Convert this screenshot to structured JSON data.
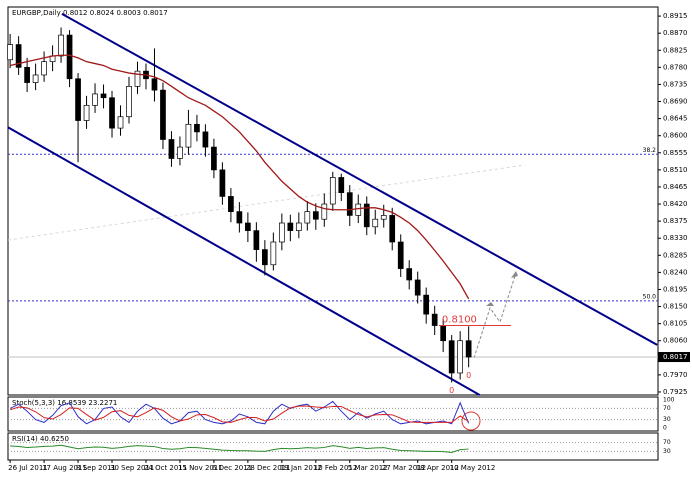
{
  "chart_data": [
    {
      "type": "candlestick",
      "title": "EURGBP,Daily  0.8012 0.8024 0.8003 0.8017",
      "categories": [
        "26 Jul 2011",
        null,
        null,
        null,
        "17 Aug 2011",
        null,
        null,
        null,
        "8 Sep 2011",
        null,
        null,
        null,
        "30 Sep 2011",
        null,
        null,
        null,
        "24 Oct 2011",
        null,
        null,
        null,
        "15 Nov 2011",
        null,
        null,
        null,
        "6 Dec 2011",
        null,
        null,
        null,
        "28 Dec 2011",
        null,
        null,
        null,
        "19 Jan 2012",
        null,
        null,
        null,
        "10 Feb 2012",
        null,
        null,
        null,
        "5 Mar 2012",
        null,
        null,
        null,
        "27 Mar 2012",
        null,
        null,
        null,
        "18 Apr 2012",
        null,
        null,
        null,
        "10 May 2012",
        null,
        null
      ],
      "open": [
        0.88,
        0.884,
        0.878,
        0.874,
        0.876,
        0.8795,
        0.881,
        0.8865,
        0.875,
        0.864,
        0.868,
        0.871,
        0.87,
        0.862,
        0.865,
        0.873,
        0.877,
        0.875,
        0.872,
        0.859,
        0.854,
        0.857,
        0.863,
        0.861,
        0.857,
        0.851,
        0.844,
        0.84,
        0.837,
        0.835,
        0.83,
        0.826,
        0.832,
        0.837,
        0.835,
        0.837,
        0.84,
        0.838,
        0.842,
        0.849,
        0.845,
        0.839,
        0.842,
        0.836,
        0.838,
        0.839,
        0.832,
        0.825,
        0.822,
        0.818,
        0.813,
        0.81,
        0.806,
        0.7975,
        0.806
      ],
      "high": [
        0.8868,
        0.8862,
        0.8805,
        0.879,
        0.8822,
        0.8838,
        0.8885,
        0.8878,
        0.8765,
        0.8705,
        0.8738,
        0.8735,
        0.8718,
        0.868,
        0.8755,
        0.8795,
        0.879,
        0.883,
        0.874,
        0.8612,
        0.8598,
        0.8668,
        0.8655,
        0.863,
        0.8592,
        0.853,
        0.8462,
        0.8425,
        0.8398,
        0.8372,
        0.8325,
        0.8345,
        0.8395,
        0.8392,
        0.8398,
        0.8428,
        0.8422,
        0.8448,
        0.8505,
        0.85,
        0.847,
        0.8445,
        0.844,
        0.8405,
        0.8418,
        0.841,
        0.834,
        0.8272,
        0.8242,
        0.82,
        0.8152,
        0.8118,
        0.8075,
        0.8085,
        0.8098
      ],
      "low": [
        0.8778,
        0.876,
        0.8715,
        0.872,
        0.8742,
        0.877,
        0.8792,
        0.8728,
        0.853,
        0.8618,
        0.866,
        0.8672,
        0.8595,
        0.86,
        0.8632,
        0.871,
        0.8722,
        0.869,
        0.8565,
        0.8518,
        0.8522,
        0.855,
        0.8585,
        0.8545,
        0.8488,
        0.8418,
        0.8372,
        0.8345,
        0.832,
        0.8268,
        0.8232,
        0.8245,
        0.8298,
        0.8322,
        0.833,
        0.835,
        0.8352,
        0.836,
        0.8402,
        0.8428,
        0.8362,
        0.837,
        0.8338,
        0.834,
        0.8358,
        0.8298,
        0.8228,
        0.8195,
        0.8158,
        0.8105,
        0.8075,
        0.803,
        0.795,
        0.7958,
        0.799
      ],
      "close": [
        0.884,
        0.878,
        0.874,
        0.876,
        0.8795,
        0.881,
        0.8865,
        0.875,
        0.864,
        0.868,
        0.871,
        0.87,
        0.862,
        0.865,
        0.873,
        0.877,
        0.875,
        0.872,
        0.859,
        0.854,
        0.857,
        0.863,
        0.861,
        0.857,
        0.851,
        0.844,
        0.84,
        0.837,
        0.835,
        0.83,
        0.826,
        0.832,
        0.837,
        0.835,
        0.837,
        0.84,
        0.838,
        0.842,
        0.849,
        0.845,
        0.839,
        0.842,
        0.836,
        0.838,
        0.839,
        0.832,
        0.825,
        0.822,
        0.818,
        0.813,
        0.81,
        0.806,
        0.7975,
        0.806,
        0.8017
      ],
      "moving_average": {
        "color": "#a01818",
        "values": [
          0.8785,
          0.879,
          0.8795,
          0.88,
          0.8805,
          0.881,
          0.8812,
          0.8812,
          0.8805,
          0.8795,
          0.879,
          0.8785,
          0.8775,
          0.877,
          0.8765,
          0.8762,
          0.876,
          0.8755,
          0.8745,
          0.873,
          0.8715,
          0.87,
          0.869,
          0.868,
          0.8665,
          0.865,
          0.863,
          0.861,
          0.8585,
          0.856,
          0.853,
          0.8505,
          0.848,
          0.846,
          0.844,
          0.8425,
          0.8415,
          0.8408,
          0.8405,
          0.8405,
          0.8405,
          0.8408,
          0.841,
          0.841,
          0.8405,
          0.8398,
          0.8385,
          0.837,
          0.835,
          0.8325,
          0.8298,
          0.827,
          0.824,
          0.821,
          0.817
        ]
      },
      "trend_lines": [
        {
          "color": "#00008b",
          "points": [
            [
              6.1,
              0.8921
            ],
            [
              76.2,
              0.8049
            ]
          ]
        },
        {
          "color": "#00008b",
          "points": [
            [
              -0.24,
              0.8622
            ],
            [
              55.3,
              0.7917
            ]
          ]
        }
      ],
      "levels": [
        {
          "value": 0.8551,
          "label": "38.2",
          "color": "#3535c8"
        },
        {
          "value": 0.8165,
          "label": "50.0",
          "color": "#3535c8"
        }
      ],
      "marker_line": {
        "value": 0.81,
        "text": "0.8100",
        "color": "#e03a3a",
        "from": 50.5,
        "to": 59
      },
      "point_labels": [
        {
          "text": "0",
          "index": 52,
          "color": "#e03a3a"
        },
        {
          "text": "0",
          "index": 54,
          "color": "#e03a3a"
        }
      ],
      "last_price": 0.8017,
      "xlim": [
        -0.25,
        76.3
      ],
      "ylim": [
        0.7917,
        0.8939
      ],
      "yticks": [
        0.8915,
        {
          "value": 0.887,
          "label": "0.8870"
        },
        0.8825,
        {
          "value": 0.878,
          "label": "0.8780"
        },
        0.8735,
        {
          "value": 0.869,
          "label": "0.8690"
        },
        0.8645,
        {
          "value": 0.86,
          "label": "0.8600"
        },
        0.8555,
        {
          "value": 0.851,
          "label": "0.8510"
        },
        0.8465,
        {
          "value": 0.842,
          "label": "0.8420"
        },
        0.8375,
        {
          "value": 0.833,
          "label": "0.8330"
        },
        0.8285,
        {
          "value": 0.824,
          "label": "0.8240"
        },
        0.8195,
        {
          "value": 0.815,
          "label": "0.8150"
        },
        0.8105,
        {
          "value": 0.806,
          "label": "0.8060"
        },
        {
          "value": 0.797,
          "label": "0.7970"
        },
        0.7925
      ]
    },
    {
      "type": "line",
      "title": "Stoch(5,3,3) 16.8539 23.2271",
      "series": [
        {
          "color": "#2f2fc8",
          "values": [
            70,
            85,
            60,
            30,
            20,
            45,
            80,
            90,
            40,
            15,
            30,
            70,
            75,
            40,
            20,
            60,
            85,
            70,
            35,
            15,
            25,
            55,
            60,
            30,
            20,
            15,
            25,
            50,
            40,
            20,
            15,
            60,
            85,
            70,
            80,
            85,
            60,
            75,
            95,
            60,
            30,
            55,
            35,
            50,
            60,
            30,
            15,
            20,
            25,
            15,
            20,
            25,
            15,
            90,
            16.8539
          ]
        },
        {
          "color": "#d42020",
          "values": [
            65,
            75,
            72,
            58,
            37,
            32,
            48,
            72,
            70,
            48,
            28,
            38,
            58,
            62,
            45,
            40,
            55,
            72,
            63,
            40,
            25,
            32,
            47,
            48,
            37,
            22,
            20,
            30,
            38,
            37,
            25,
            32,
            53,
            72,
            78,
            78,
            75,
            73,
            77,
            77,
            62,
            48,
            40,
            47,
            48,
            47,
            35,
            22,
            20,
            20,
            20,
            20,
            20,
            43,
            23.2271
          ]
        }
      ],
      "ylim": [
        0,
        100
      ],
      "yticks": [
        100,
        70,
        30,
        0
      ],
      "grid": true
    },
    {
      "type": "line",
      "title": "RSI(14) 40.6250",
      "series": [
        {
          "color": "#2a8a2a",
          "values": [
            55,
            52,
            48,
            50,
            53,
            54,
            58,
            50,
            42,
            47,
            50,
            49,
            44,
            47,
            53,
            56,
            54,
            52,
            43,
            40,
            42,
            48,
            47,
            44,
            40,
            36,
            34,
            33,
            33,
            31,
            30,
            38,
            44,
            42,
            44,
            47,
            45,
            48,
            56,
            51,
            44,
            48,
            43,
            46,
            47,
            40,
            34,
            33,
            32,
            30,
            30,
            29,
            25,
            38,
            40.625
          ]
        }
      ],
      "ylim": [
        0,
        100
      ],
      "yticks": [
        70,
        30
      ],
      "grid": true
    }
  ]
}
